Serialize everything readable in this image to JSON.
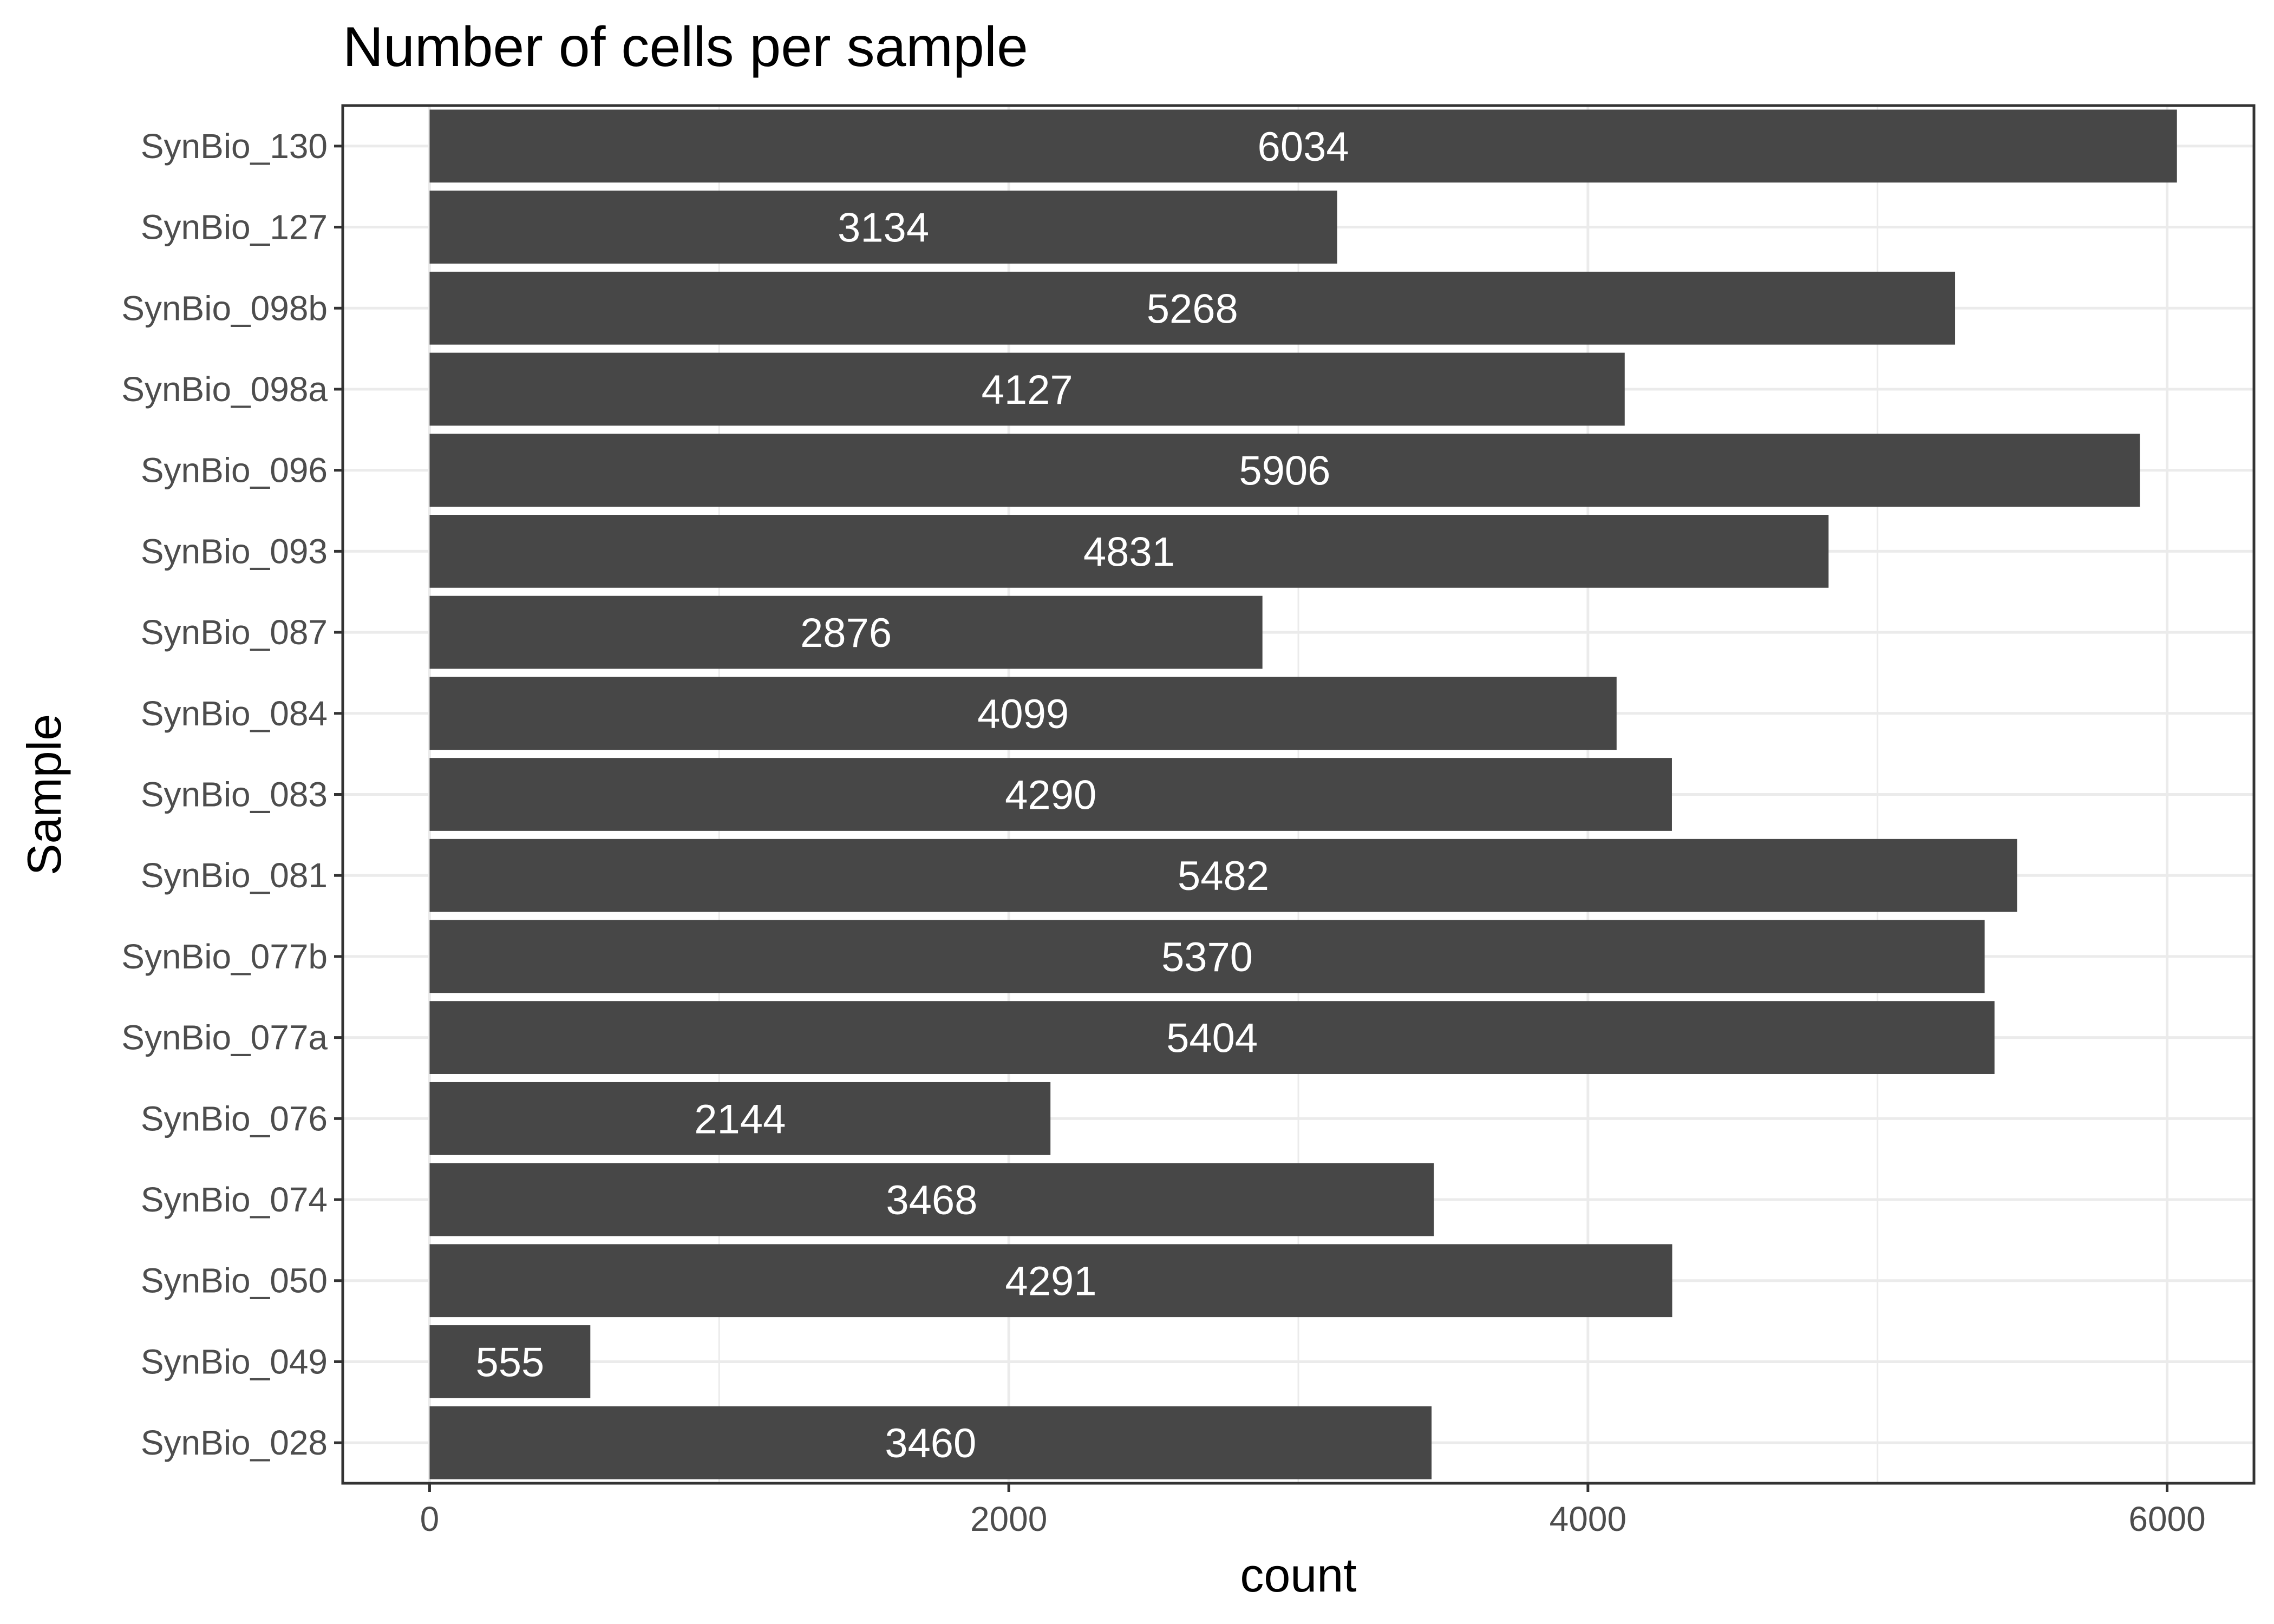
{
  "chart_data": {
    "type": "bar",
    "orientation": "horizontal",
    "title": "Number of cells per sample",
    "xlabel": "count",
    "ylabel": "Sample",
    "categories": [
      "SynBio_130",
      "SynBio_127",
      "SynBio_098b",
      "SynBio_098a",
      "SynBio_096",
      "SynBio_093",
      "SynBio_087",
      "SynBio_084",
      "SynBio_083",
      "SynBio_081",
      "SynBio_077b",
      "SynBio_077a",
      "SynBio_076",
      "SynBio_074",
      "SynBio_050",
      "SynBio_049",
      "SynBio_028"
    ],
    "values": [
      6034,
      3134,
      5268,
      4127,
      5906,
      4831,
      2876,
      4099,
      4290,
      5482,
      5370,
      5404,
      2144,
      3468,
      4291,
      555,
      3460
    ],
    "xlim": [
      -300,
      6300
    ],
    "xticks": [
      0,
      2000,
      4000,
      6000
    ],
    "xtick_labels": [
      "0",
      "2000",
      "4000",
      "6000"
    ],
    "grid": true,
    "bar_color": "#474747",
    "bar_label_color": "#ffffff",
    "grid_color": "#ebebeb"
  }
}
